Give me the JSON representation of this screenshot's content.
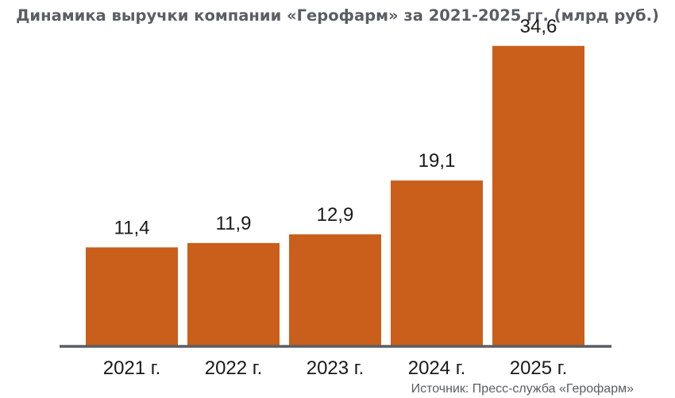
{
  "chart_data": {
    "type": "bar",
    "title": "Динамика выручки компании «Герофарм» за 2021-2025 гг. (млрд руб.)",
    "categories": [
      "2021 г.",
      "2022 г.",
      "2023 г.",
      "2024 г.",
      "2025 г."
    ],
    "values": [
      11.4,
      11.9,
      12.9,
      19.1,
      34.6
    ],
    "data_labels": [
      "11,4",
      "11,9",
      "12,9",
      "19,1",
      "34,6"
    ],
    "xlabel": "",
    "ylabel": "",
    "ylim": [
      0,
      36.5
    ],
    "grid": false,
    "legend": "none",
    "colors": {
      "bar": "#c95f1b",
      "axis": "#5a5e65",
      "title": "#5a5e65"
    }
  },
  "source": "Источник: Пресс-служба «Герофарм»"
}
